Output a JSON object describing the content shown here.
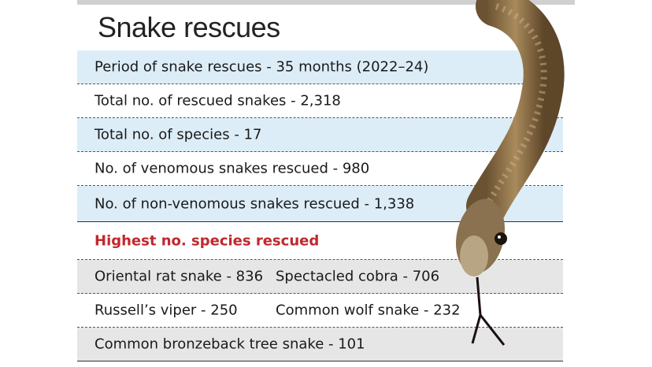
{
  "title": "Snake rescues",
  "facts": [
    "Period of snake rescues - 35 months (2022–24)",
    "Total no. of rescued snakes - 2,318",
    "Total no. of species - 17",
    "No. of venomous snakes rescued - 980",
    "No. of non-venomous snakes rescued - 1,338"
  ],
  "species_heading": "Highest no. species rescued",
  "species": [
    [
      "Oriental rat snake - 836",
      "Spectacled cobra - 706"
    ],
    [
      "Russell’s viper - 250",
      "Common wolf snake - 232"
    ],
    [
      "Common bronzeback tree snake - 101"
    ]
  ]
}
